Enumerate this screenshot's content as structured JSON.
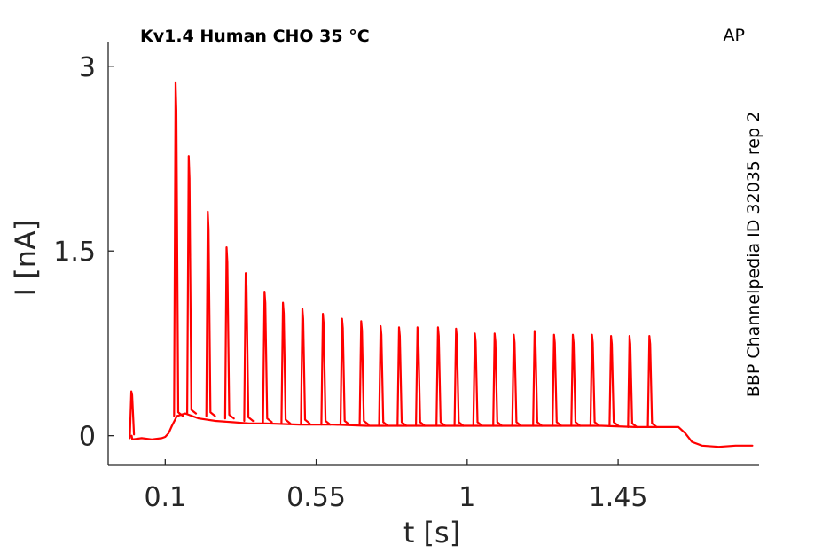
{
  "chart_data": {
    "type": "line",
    "title": "Kv1.4  Human  CHO  35 °C",
    "corner_label": "AP",
    "side_label": "BBP Channelpedia ID 32035 rep 2",
    "xlabel": "t [s]",
    "ylabel": "I [nA]",
    "xlim": [
      -0.07,
      1.87
    ],
    "ylim": [
      -0.24,
      3.2
    ],
    "x_ticks": [
      0.1,
      0.55,
      1,
      1.45
    ],
    "x_tick_labels": [
      "0.1",
      "0.55",
      "1",
      "1.45"
    ],
    "y_ticks": [
      0,
      1.5,
      3
    ],
    "y_tick_labels": [
      "0",
      "1.5",
      "3"
    ],
    "grid": false,
    "series": [
      {
        "color": "#ff0000",
        "baseline": [
          [
            0.0,
            0.0
          ],
          [
            0.002,
            -0.03
          ],
          [
            0.03,
            -0.02
          ],
          [
            0.06,
            -0.03
          ],
          [
            0.09,
            -0.02
          ],
          [
            0.1,
            -0.01
          ],
          [
            0.11,
            0.02
          ],
          [
            0.12,
            0.08
          ],
          [
            0.135,
            0.16
          ],
          [
            0.16,
            0.18
          ],
          [
            0.2,
            0.14
          ],
          [
            0.25,
            0.12
          ],
          [
            0.3,
            0.11
          ],
          [
            0.35,
            0.1
          ],
          [
            0.4,
            0.1
          ],
          [
            0.5,
            0.09
          ],
          [
            0.6,
            0.09
          ],
          [
            0.7,
            0.08
          ],
          [
            0.8,
            0.08
          ],
          [
            0.9,
            0.08
          ],
          [
            1.0,
            0.08
          ],
          [
            1.1,
            0.08
          ],
          [
            1.2,
            0.08
          ],
          [
            1.3,
            0.08
          ],
          [
            1.4,
            0.08
          ],
          [
            1.5,
            0.07
          ],
          [
            1.6,
            0.07
          ],
          [
            1.63,
            0.07
          ],
          [
            1.65,
            0.02
          ],
          [
            1.67,
            -0.05
          ],
          [
            1.7,
            -0.08
          ],
          [
            1.75,
            -0.09
          ],
          [
            1.8,
            -0.08
          ],
          [
            1.85,
            -0.08
          ]
        ],
        "spikes": [
          {
            "t": 0.0,
            "peak": 0.36,
            "base": -0.02
          },
          {
            "t": 0.132,
            "peak": 2.87,
            "base": 0.16
          },
          {
            "t": 0.171,
            "peak": 2.27,
            "base": 0.18
          },
          {
            "t": 0.228,
            "peak": 1.82,
            "base": 0.16
          },
          {
            "t": 0.284,
            "peak": 1.53,
            "base": 0.14
          },
          {
            "t": 0.341,
            "peak": 1.32,
            "base": 0.12
          },
          {
            "t": 0.397,
            "peak": 1.17,
            "base": 0.11
          },
          {
            "t": 0.452,
            "peak": 1.08,
            "base": 0.1
          },
          {
            "t": 0.51,
            "peak": 1.03,
            "base": 0.1
          },
          {
            "t": 0.571,
            "peak": 0.99,
            "base": 0.09
          },
          {
            "t": 0.628,
            "peak": 0.95,
            "base": 0.09
          },
          {
            "t": 0.685,
            "peak": 0.93,
            "base": 0.09
          },
          {
            "t": 0.743,
            "peak": 0.89,
            "base": 0.08
          },
          {
            "t": 0.798,
            "peak": 0.88,
            "base": 0.08
          },
          {
            "t": 0.853,
            "peak": 0.88,
            "base": 0.08
          },
          {
            "t": 0.914,
            "peak": 0.88,
            "base": 0.08
          },
          {
            "t": 0.968,
            "peak": 0.87,
            "base": 0.08
          },
          {
            "t": 1.024,
            "peak": 0.83,
            "base": 0.08
          },
          {
            "t": 1.083,
            "peak": 0.83,
            "base": 0.08
          },
          {
            "t": 1.14,
            "peak": 0.82,
            "base": 0.08
          },
          {
            "t": 1.202,
            "peak": 0.85,
            "base": 0.08
          },
          {
            "t": 1.26,
            "peak": 0.82,
            "base": 0.08
          },
          {
            "t": 1.316,
            "peak": 0.82,
            "base": 0.08
          },
          {
            "t": 1.373,
            "peak": 0.82,
            "base": 0.08
          },
          {
            "t": 1.43,
            "peak": 0.81,
            "base": 0.08
          },
          {
            "t": 1.485,
            "peak": 0.81,
            "base": 0.07
          },
          {
            "t": 1.544,
            "peak": 0.81,
            "base": 0.07
          }
        ]
      }
    ]
  }
}
